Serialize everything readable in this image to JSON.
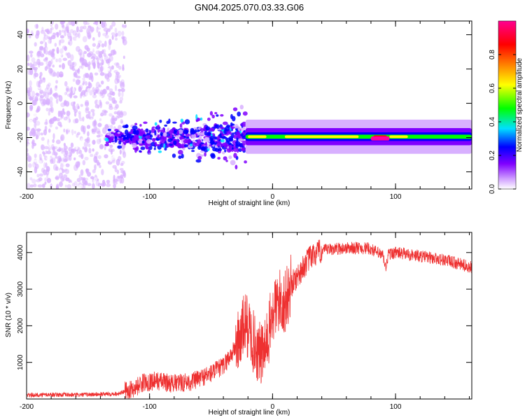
{
  "title": "GN04.2025.070.03.33.G06",
  "chart_data": [
    {
      "type": "heatmap",
      "xlabel": "Height of straight line (km)",
      "ylabel": "Frequency (Hz)",
      "xlim": [
        -200,
        162
      ],
      "ylim": [
        -50,
        48
      ],
      "x_ticks": [
        -200,
        -100,
        0,
        100
      ],
      "y_ticks": [
        -40,
        -20,
        0,
        20,
        40
      ],
      "colorbar": {
        "label": "Normalized spectral amplitude",
        "range": [
          0,
          1
        ],
        "ticks": [
          0.0,
          0.2,
          0.4,
          0.6,
          0.8
        ],
        "colormap": [
          "#ffffff",
          "#d8b0ff",
          "#8000ff",
          "#0000ff",
          "#00e0ff",
          "#00ff00",
          "#ffff00",
          "#ff8000",
          "#ff0000",
          "#ff00a0"
        ]
      },
      "features": [
        {
          "name": "scattered noise",
          "x_range": [
            -200,
            -120
          ],
          "frequency_range": [
            -50,
            48
          ],
          "amplitude": "low"
        },
        {
          "name": "noisy band",
          "x_range": [
            -135,
            -22
          ],
          "frequency_center": -20,
          "amplitude": "medium"
        },
        {
          "name": "steady band",
          "x_range": [
            -22,
            162
          ],
          "frequency_center": -19.5,
          "amplitude": "high"
        },
        {
          "name": "peak",
          "x_range": [
            80,
            95
          ],
          "frequency_center": -20.5,
          "amplitude": "max"
        }
      ]
    },
    {
      "type": "line",
      "xlabel": "Height of straight line (km)",
      "ylabel": "SNR (10 * v/v)",
      "xlim": [
        -200,
        162
      ],
      "ylim": [
        0,
        4550
      ],
      "x_ticks": [
        -200,
        -100,
        0,
        100
      ],
      "y_ticks": [
        1000,
        2000,
        3000,
        4000
      ],
      "color": "#ee3030",
      "x": [
        -200,
        -180,
        -160,
        -140,
        -125,
        -115,
        -105,
        -95,
        -80,
        -65,
        -50,
        -40,
        -32,
        -26,
        -22,
        -18,
        -14,
        -10,
        -6,
        -2,
        2,
        6,
        10,
        15,
        20,
        25,
        30,
        40,
        50,
        60,
        70,
        80,
        90,
        92,
        94,
        100,
        110,
        120,
        130,
        140,
        150,
        162
      ],
      "y": [
        100,
        120,
        110,
        130,
        150,
        250,
        450,
        500,
        420,
        480,
        700,
        900,
        1300,
        1700,
        2100,
        1800,
        1400,
        1200,
        1300,
        2000,
        2500,
        2700,
        2600,
        3100,
        3350,
        3600,
        3850,
        4050,
        4100,
        4120,
        4130,
        4100,
        3900,
        3550,
        3950,
        4000,
        3950,
        3900,
        3850,
        3800,
        3700,
        3600
      ]
    }
  ],
  "colors": {
    "line": "#ee3030",
    "background": "#ffffff",
    "axes": "#000000"
  }
}
